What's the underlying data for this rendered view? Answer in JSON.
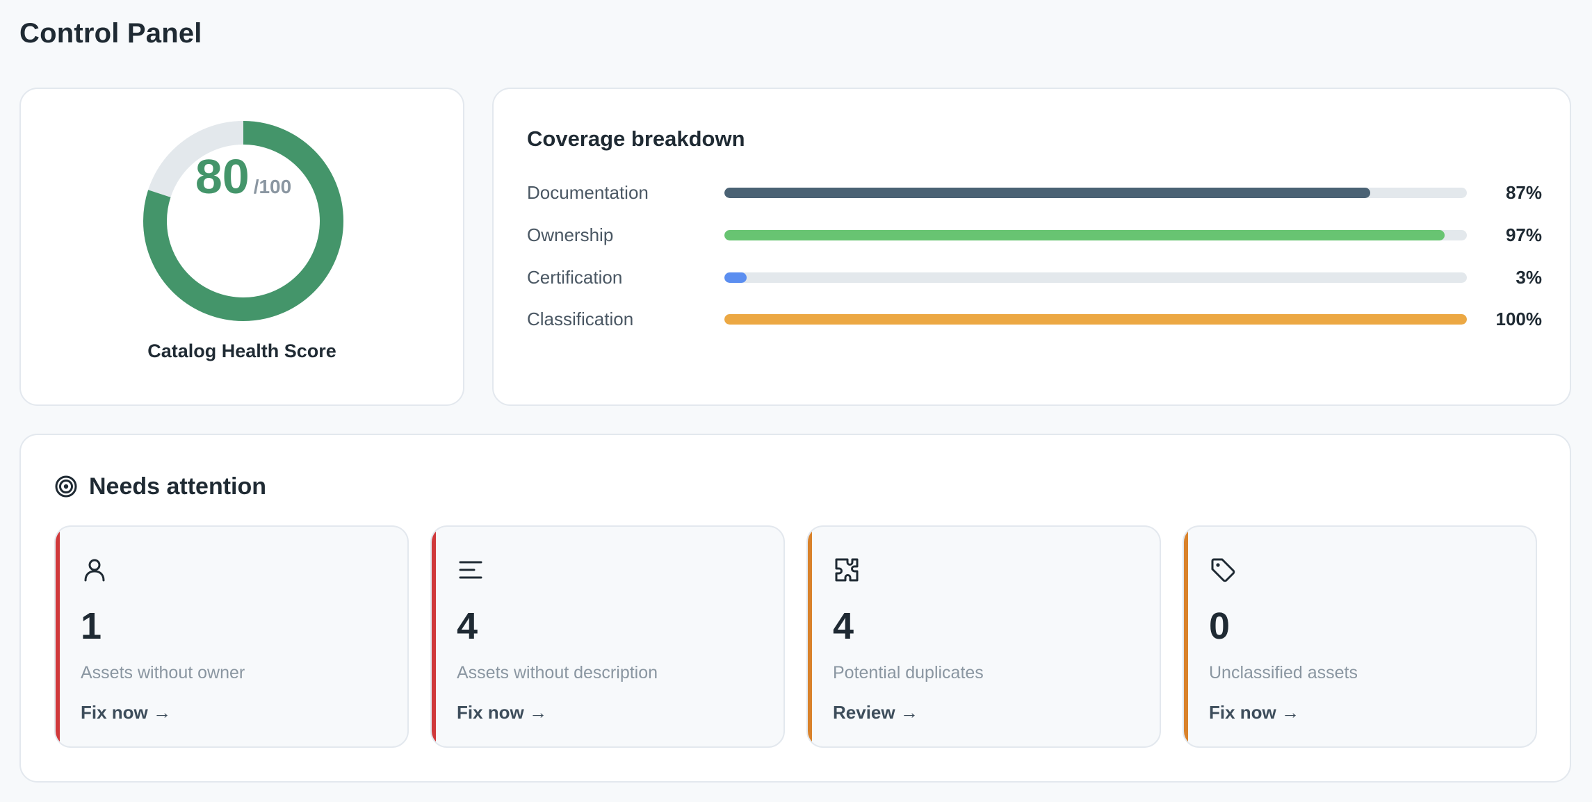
{
  "page": {
    "title": "Control Panel"
  },
  "health": {
    "score": "80",
    "max": "/100",
    "score_fraction": 0.8,
    "label": "Catalog Health Score",
    "color": "#44956a",
    "track_color": "#e3e8ec"
  },
  "coverage": {
    "title": "Coverage breakdown",
    "rows": [
      {
        "label": "Documentation",
        "value": 87,
        "pct": "87%",
        "color": "#4a6274"
      },
      {
        "label": "Ownership",
        "value": 97,
        "pct": "97%",
        "color": "#68c472"
      },
      {
        "label": "Certification",
        "value": 3,
        "pct": "3%",
        "color": "#5b8ef0"
      },
      {
        "label": "Classification",
        "value": 100,
        "pct": "100%",
        "color": "#eca843"
      }
    ]
  },
  "attention": {
    "title": "Needs attention",
    "icon": "target-icon",
    "tiles": [
      {
        "icon": "user-icon",
        "count": "1",
        "label": "Assets without owner",
        "action": "Fix now →",
        "accent": "#d0393b"
      },
      {
        "icon": "text-lines-icon",
        "count": "4",
        "label": "Assets without description",
        "action": "Fix now →",
        "accent": "#d0393b"
      },
      {
        "icon": "puzzle-icon",
        "count": "4",
        "label": "Potential duplicates",
        "action": "Review →",
        "accent": "#d9822b"
      },
      {
        "icon": "tag-icon",
        "count": "0",
        "label": "Unclassified assets",
        "action": "Fix now →",
        "accent": "#d9822b"
      }
    ]
  }
}
